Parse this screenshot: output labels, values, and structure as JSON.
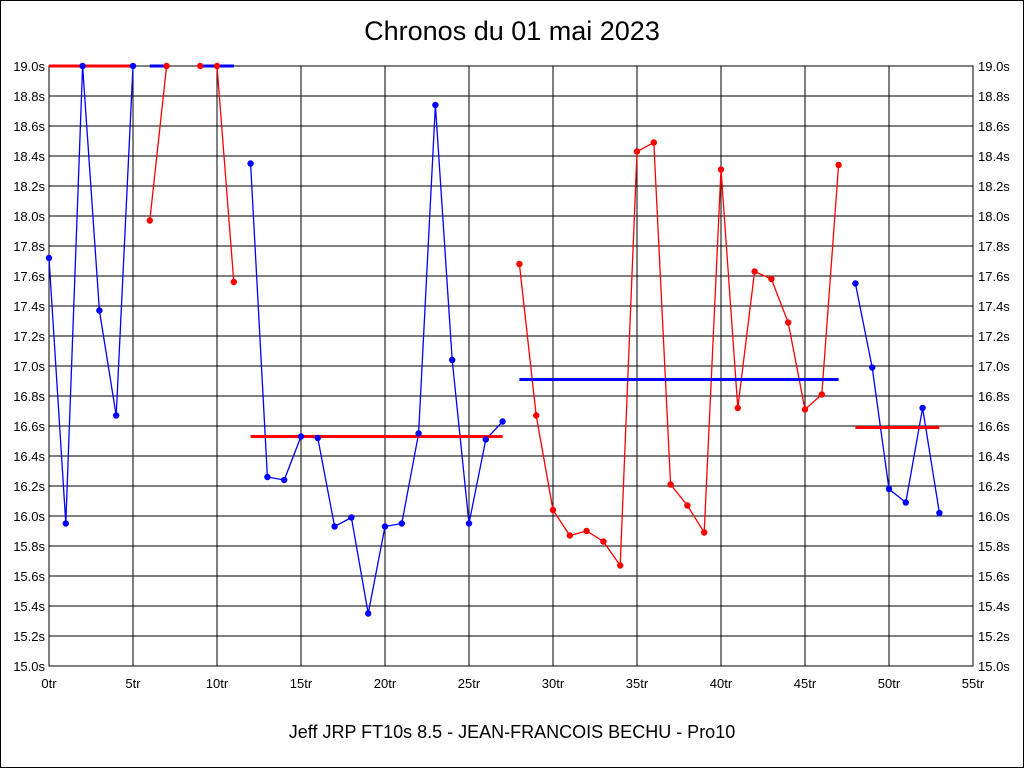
{
  "chart_data": {
    "type": "line",
    "title": "Chronos du 01 mai 2023",
    "footer": "Jeff JRP FT10s 8.5 - JEAN-FRANCOIS BECHU - Pro10",
    "xlim": [
      0,
      55
    ],
    "ylim": [
      15.0,
      19.0
    ],
    "x_ticks": [
      0,
      5,
      10,
      15,
      20,
      25,
      30,
      35,
      40,
      45,
      50,
      55
    ],
    "x_tick_suffix": "tr",
    "y_ticks": [
      15.0,
      15.2,
      15.4,
      15.6,
      15.8,
      16.0,
      16.2,
      16.4,
      16.6,
      16.8,
      17.0,
      17.2,
      17.4,
      17.6,
      17.8,
      18.0,
      18.2,
      18.4,
      18.6,
      18.8,
      19.0
    ],
    "y_tick_suffix": "s",
    "grid": true,
    "y_axis_both_sides": true,
    "groups": [
      {
        "color": "#0000ff",
        "avg_color": "#ff0000",
        "average": 19.0,
        "avg_range": [
          0,
          5
        ],
        "x": [
          0,
          1,
          2,
          3,
          4,
          5
        ],
        "y": [
          17.72,
          15.95,
          19.0,
          17.37,
          16.67,
          19.0
        ]
      },
      {
        "color": "#ff0000",
        "avg_color": "#0000ff",
        "average": 19.0,
        "avg_range": [
          6,
          7
        ],
        "x": [
          6,
          7
        ],
        "y": [
          17.97,
          19.0
        ]
      },
      {
        "color": "#ff0000",
        "avg_color": "#0000ff",
        "average": 19.0,
        "avg_range": [
          9,
          11
        ],
        "x": [
          9,
          10,
          11
        ],
        "y": [
          19.0,
          19.0,
          17.56
        ]
      },
      {
        "color": "#0000ff",
        "avg_color": "#ff0000",
        "average": 16.53,
        "avg_range": [
          12,
          27
        ],
        "x": [
          12,
          13,
          14,
          15,
          16,
          17,
          18,
          19,
          20,
          21,
          22,
          23,
          24,
          25,
          26,
          27
        ],
        "y": [
          18.35,
          16.26,
          16.24,
          16.53,
          16.52,
          15.93,
          15.99,
          15.35,
          15.93,
          15.95,
          16.55,
          18.74,
          17.04,
          15.95,
          16.51,
          16.63
        ]
      },
      {
        "color": "#ff0000",
        "avg_color": "#0000ff",
        "average": 16.91,
        "avg_range": [
          28,
          47
        ],
        "x": [
          28,
          29,
          30,
          31,
          32,
          33,
          34,
          35,
          36,
          37,
          38,
          39,
          40,
          41,
          42,
          43,
          44,
          45,
          46,
          47
        ],
        "y": [
          17.68,
          16.67,
          16.04,
          15.87,
          15.9,
          15.83,
          15.67,
          18.43,
          18.49,
          16.21,
          16.07,
          15.89,
          18.31,
          16.72,
          17.63,
          17.58,
          17.29,
          16.71,
          16.81,
          18.34
        ]
      },
      {
        "color": "#0000ff",
        "avg_color": "#ff0000",
        "average": 16.59,
        "avg_range": [
          48,
          53
        ],
        "x": [
          48,
          49,
          50,
          51,
          52,
          53
        ],
        "y": [
          17.55,
          16.99,
          16.18,
          16.09,
          16.72,
          16.02
        ]
      }
    ]
  }
}
